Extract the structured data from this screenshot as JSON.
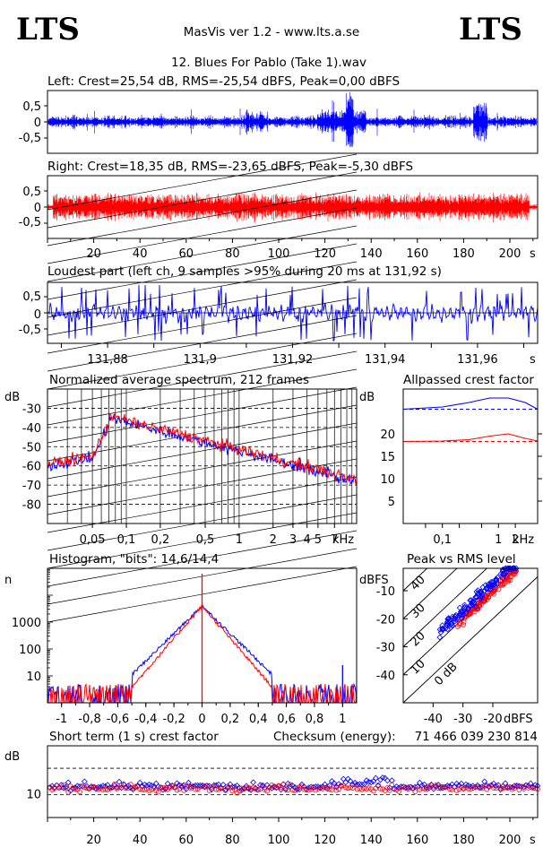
{
  "header": {
    "logo_left": "LTS",
    "logo_right": "LTS",
    "app_title": "MasVis ver 1.2 - www.lts.a.se",
    "file_title": "12. Blues For Pablo (Take 1).wav"
  },
  "colors": {
    "left": "#0000ff",
    "right": "#ff0000",
    "axis": "#000000"
  },
  "chart_data": [
    {
      "id": "left-waveform",
      "type": "line",
      "title": "Left: Crest=25,54 dB, RMS=-25,54 dBFS, Peak=0,00 dBFS",
      "y_ticks": [
        "0,5",
        "0",
        "-0,5"
      ],
      "ylim": [
        -1,
        1
      ],
      "xlim": [
        0,
        212
      ]
    },
    {
      "id": "right-waveform",
      "type": "line",
      "title": "Right: Crest=18,35 dB, RMS=-23,65 dBFS, Peak=-5,30 dBFS",
      "y_ticks": [
        "0,5",
        "0",
        "-0,5"
      ],
      "x_ticks": [
        "20",
        "40",
        "60",
        "80",
        "100",
        "120",
        "140",
        "160",
        "180",
        "200"
      ],
      "x_unit": "s",
      "ylim": [
        -1,
        1
      ],
      "xlim": [
        0,
        212
      ]
    },
    {
      "id": "loudest-part",
      "type": "line",
      "title": "Loudest part (left  ch, 9 samples >95% during 20 ms at 131,92 s)",
      "y_ticks": [
        "0,5",
        "0",
        "-0,5"
      ],
      "x_ticks": [
        "131,88",
        "131,9",
        "131,92",
        "131,94",
        "131,96"
      ],
      "x_unit": "s",
      "xlim": [
        131.867,
        131.973
      ],
      "ylim": [
        -1,
        1
      ]
    },
    {
      "id": "average-spectrum",
      "type": "line",
      "title": "Normalized average spectrum, 212 frames",
      "ylabel": "dB",
      "y_ticks": [
        "-30",
        "-40",
        "-50",
        "-60",
        "-70",
        "-80"
      ],
      "x_ticks": [
        "0,05",
        "0,1",
        "0,2",
        "0,5",
        "1",
        "2",
        "3",
        "4",
        "5",
        "7"
      ],
      "x_unit": "kHz",
      "ylim": [
        -90,
        -20
      ]
    },
    {
      "id": "allpassed-crest",
      "type": "line",
      "title": "Allpassed crest factor",
      "ylabel": "dB",
      "y_ticks": [
        "20",
        "15",
        "10",
        "5"
      ],
      "x_ticks": [
        "0,1",
        "1",
        "2"
      ],
      "x_unit": "kHz",
      "series": [
        {
          "values": [
            25.5,
            26.0,
            27.0,
            28.0,
            28.0,
            27.0,
            25.5
          ]
        },
        {
          "values": [
            18.3,
            18.4,
            18.7,
            19.5,
            20.0,
            19.0,
            18.4
          ]
        }
      ]
    },
    {
      "id": "histogram",
      "type": "line",
      "title": "Histogram, \"bits\": 14,6/14,4",
      "ylabel": "n",
      "y_ticks": [
        "1000",
        "100",
        "10"
      ],
      "x_ticks": [
        "-1",
        "-0,8",
        "-0,6",
        "-0,4",
        "-0,2",
        "0",
        "0,2",
        "0,4",
        "0,6",
        "0,8",
        "1"
      ],
      "xlim": [
        -1.1,
        1.1
      ]
    },
    {
      "id": "peak-vs-rms",
      "type": "scatter",
      "title": "Peak vs RMS level",
      "ylabel": "dBFS",
      "xlabel": "dBFS",
      "y_ticks": [
        "-10",
        "-20",
        "-30",
        "-40"
      ],
      "x_ticks": [
        "-40",
        "-30",
        "-20"
      ],
      "diag_labels": [
        "40",
        "30",
        "20",
        "10",
        "0 dB"
      ],
      "xlim": [
        -50,
        -5
      ],
      "ylim": [
        -50,
        -2
      ]
    },
    {
      "id": "short-term-crest",
      "type": "scatter",
      "title": "Short term (1 s) crest factor",
      "ylabel": "dB",
      "y_ticks": [
        "10"
      ],
      "x_ticks": [
        "20",
        "40",
        "60",
        "80",
        "100",
        "120",
        "140",
        "160",
        "180",
        "200"
      ],
      "x_unit": "s",
      "checksum_label": "Checksum (energy):",
      "checksum_value": "71 466 039 230 814"
    }
  ]
}
